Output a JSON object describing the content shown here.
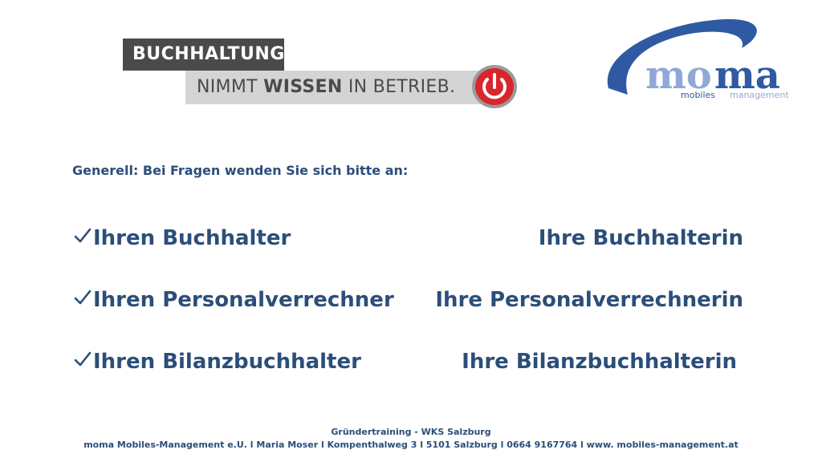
{
  "logo_buchhaltung": {
    "line1": "BUCHHALTUNG",
    "line2_prefix": "NIMMT ",
    "line2_bold": "WISSEN",
    "line2_suffix": " IN BETRIEB.",
    "icon": "power-icon",
    "colors": {
      "dark": "#4a4a4a",
      "light": "#d4d4d4",
      "power_red": "#d9262c"
    }
  },
  "logo_moma": {
    "wordmark": "moma",
    "sub_left": "mobiles",
    "sub_right": "management",
    "colors": {
      "swoosh": "#2f5aa3",
      "light": "#8fa8d6"
    }
  },
  "intro": "Generell: Bei Fragen wenden Sie sich bitte an:",
  "contacts": [
    {
      "left": "Ihren Buchhalter",
      "right": "Ihre Buchhalterin"
    },
    {
      "left": "Ihren Personalverrechner",
      "right": "Ihre Personalverrechnerin"
    },
    {
      "left": "Ihren Bilanzbuchhalter",
      "right": "Ihre Bilanzbuchhalterin"
    }
  ],
  "check_icon": "checkmark-icon",
  "footer": {
    "line1": "Gründertraining - WKS Salzburg",
    "line2": "moma Mobiles-Management e.U. l Maria Moser l Kompenthalweg 3 l 5101 Salzburg l 0664 9167764 l www. mobiles-management.at"
  },
  "text_color": "#2b4e7a"
}
